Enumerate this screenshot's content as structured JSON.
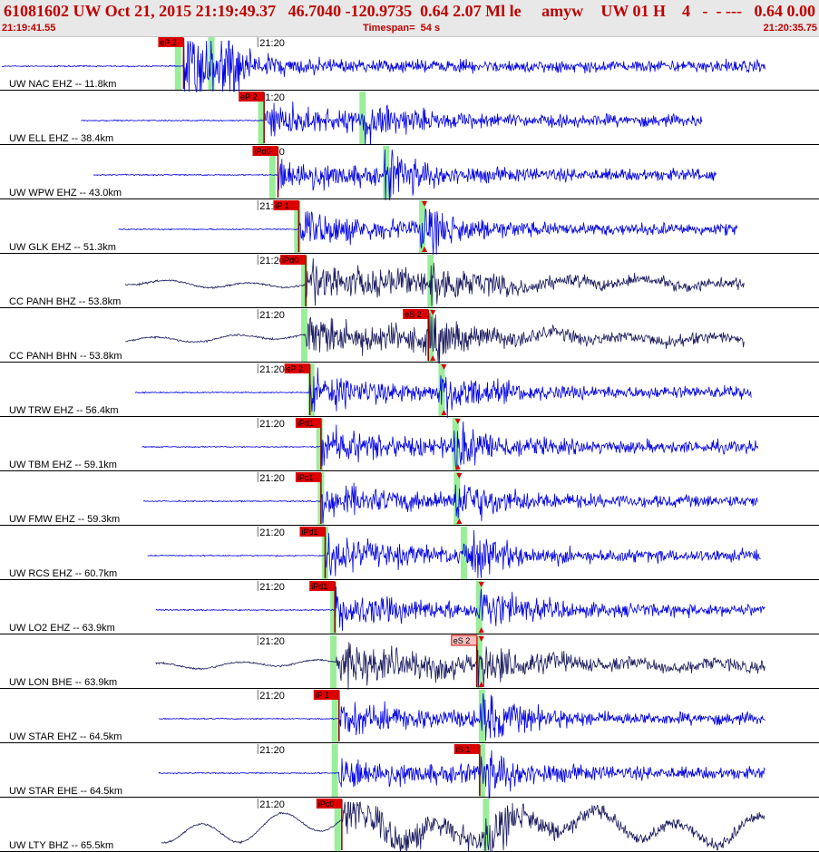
{
  "header": {
    "title": "61081602 UW Oct 21, 2015 21:19:49.37   46.7040 -120.9735  0.64 2.07 Ml le     amyw",
    "right": "UW 01 H    4   -  - ---   0.64 0.00",
    "start_time": "21:19:41.55",
    "timespan": "Timespan=  54 s",
    "end_time": "21:20:35.75"
  },
  "colors": {
    "header_text": "#c00000",
    "trace_blue": "#0000e6",
    "trace_dark": "#1a1a5e",
    "pick_marker": "#dd0000",
    "pick_line": "#8b0000",
    "predicted_band": "#9aee9a",
    "minute_line": "#6a6a6a"
  },
  "icons": {
    "amplitude_marker": "red-triangle-icon"
  },
  "minute_label": "21:20",
  "channels": [
    {
      "label": "UW NAC EHZ -- 11.8km",
      "pick": "eP 2",
      "color": "blue",
      "pick_t": 13.1,
      "s_pick": null,
      "amp_markers": false,
      "data_start": 0.0,
      "data_end": 55.0,
      "band1": 12.6,
      "band2": 15.0
    },
    {
      "label": "UW ELL EHZ -- 38.4km",
      "pick": "eP 2",
      "color": "blue",
      "pick_t": 18.9,
      "s_pick": null,
      "amp_markers": false,
      "data_start": 5.7,
      "data_end": 50.5,
      "band1": 18.6,
      "band2": 25.9
    },
    {
      "label": "UW WPW EHZ -- 43.0km",
      "pick": "iPd0",
      "color": "blue",
      "pick_t": 19.9,
      "s_pick": null,
      "amp_markers": false,
      "data_start": 6.6,
      "data_end": 51.5,
      "band1": 19.4,
      "band2": 27.6
    },
    {
      "label": "UW GLK EHZ -- 51.3km",
      "pick": "iP 1",
      "color": "blue",
      "pick_t": 21.4,
      "s_pick": null,
      "amp_markers": true,
      "data_start": 8.4,
      "data_end": 53.0,
      "band1": 21.2,
      "band2": 30.2
    },
    {
      "label": "CC PANH BHZ -- 53.8km",
      "pick": "iPd0",
      "color": "dark",
      "pick_t": 21.9,
      "s_pick": null,
      "amp_markers": false,
      "data_start": 8.9,
      "data_end": 53.5,
      "band1": 21.7,
      "band2": 30.8
    },
    {
      "label": "CC PANH BHN -- 53.8km",
      "pick": "",
      "color": "dark",
      "pick_t": 21.9,
      "s_pick": "eS 2",
      "amp_markers": true,
      "data_start": 8.9,
      "data_end": 53.5,
      "band1": 21.7,
      "band2": 30.8
    },
    {
      "label": "UW TRW EHZ -- 56.4km",
      "pick": "eP 2",
      "color": "blue",
      "pick_t": 22.2,
      "s_pick": null,
      "amp_markers": true,
      "data_start": 9.6,
      "data_end": 54.0,
      "band1": 22.2,
      "band2": 31.6
    },
    {
      "label": "UW TBM EHZ -- 59.1km",
      "pick": "iPd1",
      "color": "blue",
      "pick_t": 23.0,
      "s_pick": null,
      "amp_markers": true,
      "data_start": 10.1,
      "data_end": 54.5,
      "band1": 22.8,
      "band2": 32.6
    },
    {
      "label": "UW FMW EHZ -- 59.3km",
      "pick": "iPc1",
      "color": "blue",
      "pick_t": 23.0,
      "s_pick": null,
      "amp_markers": true,
      "data_start": 10.2,
      "data_end": 54.5,
      "band1": 22.9,
      "band2": 32.7
    },
    {
      "label": "UW RCS EHZ -- 60.7km",
      "pick": "iPd1",
      "color": "blue",
      "pick_t": 23.3,
      "s_pick": null,
      "amp_markers": false,
      "data_start": 10.5,
      "data_end": 54.7,
      "band1": 23.2,
      "band2": 33.2
    },
    {
      "label": "UW LO2 EHZ -- 63.9km",
      "pick": "iPd1",
      "color": "blue",
      "pick_t": 24.0,
      "s_pick": null,
      "amp_markers": true,
      "data_start": 11.1,
      "data_end": 55.0,
      "band1": 23.8,
      "band2": 34.3
    },
    {
      "label": "UW LON BHE -- 63.9km",
      "pick": "",
      "color": "dark",
      "pick_t": 24.0,
      "s_pick": "eS 2",
      "amp_markers": true,
      "data_start": 11.1,
      "data_end": 55.0,
      "band1": 23.8,
      "band2": 34.3
    },
    {
      "label": "UW STAR EHZ -- 64.5km",
      "pick": "iP 1",
      "color": "blue",
      "pick_t": 24.3,
      "s_pick": null,
      "amp_markers": false,
      "data_start": 11.3,
      "data_end": 55.0,
      "band1": 23.9,
      "band2": 34.5
    },
    {
      "label": "UW STAR EHE -- 64.5km",
      "pick": "",
      "color": "blue",
      "pick_t": 24.3,
      "s_pick": "iS 1",
      "amp_markers": false,
      "data_start": 11.3,
      "data_end": 55.0,
      "band1": 23.9,
      "band2": 34.5
    },
    {
      "label": "UW LTY BHZ -- 65.5km",
      "pick": "iPc0",
      "color": "dark",
      "pick_t": 24.5,
      "s_pick": null,
      "amp_markers": false,
      "data_start": 11.5,
      "data_end": 55.0,
      "band1": 24.1,
      "band2": 34.8
    }
  ]
}
